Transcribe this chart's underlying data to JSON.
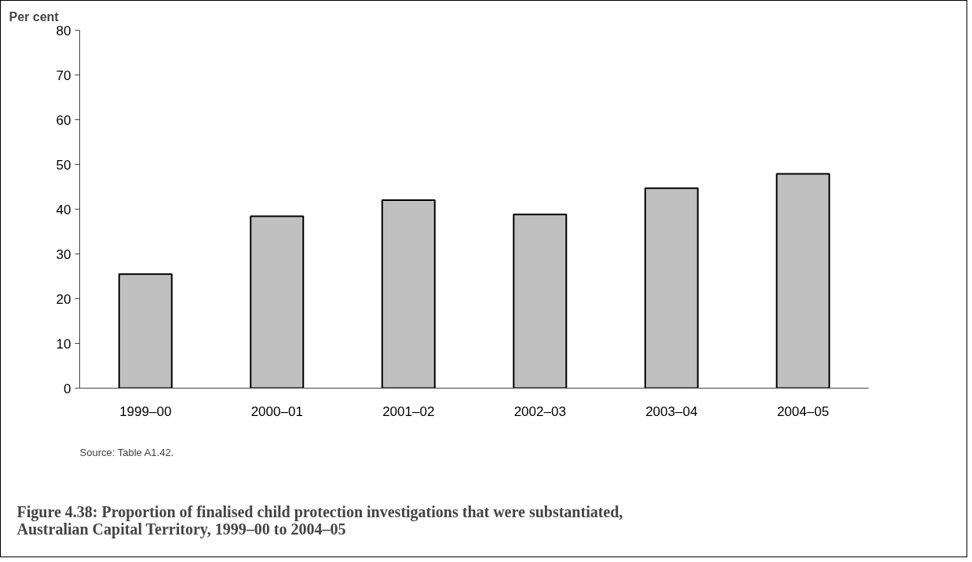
{
  "chart_data": {
    "type": "bar",
    "title": "Figure 4.38: Proportion of finalised child protection investigations that were substantiated,\nAustralian Capital Territory, 1999–00 to 2004–05",
    "ylabel": "Per cent",
    "categories": [
      "1999–00",
      "2000–01",
      "2001–02",
      "2002–03",
      "2003–04",
      "2004–05"
    ],
    "values": [
      25.5,
      38.4,
      42.0,
      38.8,
      44.7,
      47.9
    ],
    "color": "#c0c0c0",
    "ylim": [
      0,
      80
    ],
    "yticks": [
      0,
      10,
      20,
      30,
      40,
      50,
      60,
      70,
      80
    ],
    "grid": false,
    "annotations": [
      "Source: Table A1.42."
    ]
  }
}
